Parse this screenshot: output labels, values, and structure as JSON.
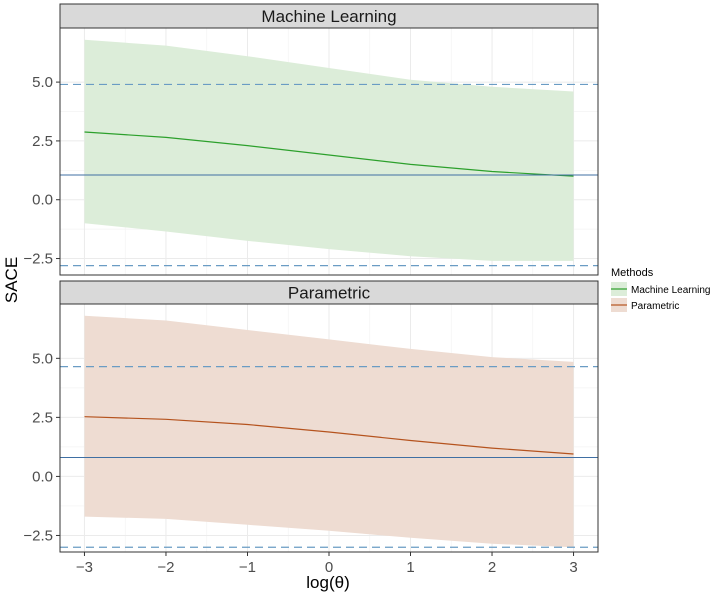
{
  "chart_data": {
    "type": "line",
    "facet_variable": "Methods",
    "xlabel": "log(θ)",
    "ylabel": "SACE",
    "xlim": [
      -3.3,
      3.3
    ],
    "ylim": [
      -3.2,
      7.3
    ],
    "x_ticks": [
      -3,
      -2,
      -1,
      0,
      1,
      2,
      3
    ],
    "x_tick_labels": [
      "−3",
      "−2",
      "−1",
      "0",
      "1",
      "2",
      "3"
    ],
    "y_ticks": [
      -2.5,
      0,
      2.5,
      5
    ],
    "y_tick_labels": [
      "−2.5",
      "0.0",
      "2.5",
      "5.0"
    ],
    "grid": true,
    "legend": {
      "title": "Methods",
      "position": "right",
      "entries": [
        {
          "label": "Machine Learning",
          "color": "#2ca02c",
          "fill": "#dcedd9"
        },
        {
          "label": "Parametric",
          "color": "#b5531e",
          "fill": "#eedcd2"
        }
      ]
    },
    "colors": {
      "reference_line": "#3f6fa3",
      "dashed_line": "#6a9cc4",
      "strip_fill": "#d9d9d9",
      "grid": "#ebebeb"
    },
    "panels": [
      {
        "title": "Machine Learning",
        "line_color": "#2ca02c",
        "band_color": "#dcedd9",
        "reference_line": 1.05,
        "dashed_lines": [
          4.9,
          -2.8
        ],
        "x": [
          -3,
          -2,
          -1,
          0,
          1,
          2,
          3
        ],
        "y": [
          2.88,
          2.65,
          2.3,
          1.9,
          1.5,
          1.2,
          1.0
        ],
        "upper": [
          6.8,
          6.55,
          6.1,
          5.6,
          5.1,
          4.8,
          4.6
        ],
        "lower": [
          -1.0,
          -1.35,
          -1.75,
          -2.1,
          -2.4,
          -2.6,
          -2.6
        ]
      },
      {
        "title": "Parametric",
        "line_color": "#b5531e",
        "band_color": "#eedcd2",
        "reference_line": 0.8,
        "dashed_lines": [
          4.65,
          -3.0
        ],
        "x": [
          -3,
          -2,
          -1,
          0,
          1,
          2,
          3
        ],
        "y": [
          2.53,
          2.42,
          2.2,
          1.88,
          1.52,
          1.2,
          0.95
        ],
        "upper": [
          6.8,
          6.6,
          6.2,
          5.8,
          5.4,
          5.05,
          4.85
        ],
        "lower": [
          -1.7,
          -1.8,
          -2.05,
          -2.3,
          -2.6,
          -2.85,
          -3.0
        ]
      }
    ]
  }
}
